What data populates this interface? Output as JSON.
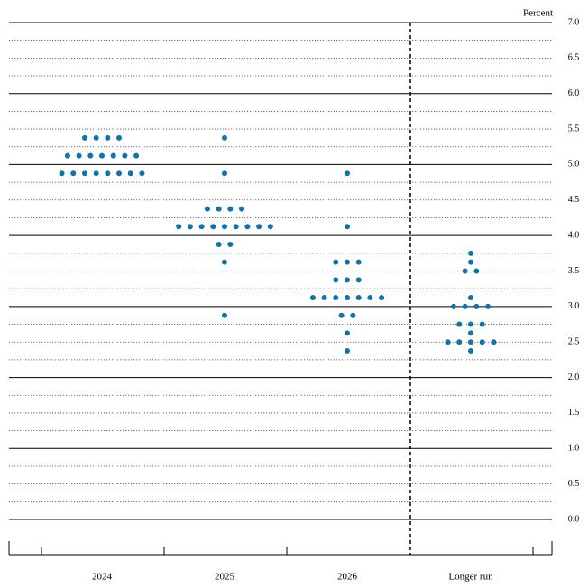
{
  "chart_data": {
    "type": "dot",
    "y_label": "Percent",
    "categories": [
      "2024",
      "2025",
      "2026",
      "Longer run"
    ],
    "values": [
      [
        5.375,
        5.375,
        5.375,
        5.375,
        5.125,
        5.125,
        5.125,
        5.125,
        5.125,
        5.125,
        5.125,
        4.875,
        4.875,
        4.875,
        4.875,
        4.875,
        4.875,
        4.875,
        4.875
      ],
      [
        5.375,
        4.875,
        4.375,
        4.375,
        4.375,
        4.375,
        4.125,
        4.125,
        4.125,
        4.125,
        4.125,
        4.125,
        4.125,
        4.125,
        4.125,
        3.875,
        3.875,
        3.625,
        2.875
      ],
      [
        4.875,
        4.125,
        3.625,
        3.625,
        3.625,
        3.375,
        3.375,
        3.375,
        3.125,
        3.125,
        3.125,
        3.125,
        3.125,
        3.125,
        3.125,
        2.875,
        2.875,
        2.625,
        2.375
      ],
      [
        3.75,
        3.625,
        3.5,
        3.5,
        3.125,
        3.0,
        3.0,
        3.0,
        3.0,
        2.75,
        2.75,
        2.75,
        2.625,
        2.5,
        2.5,
        2.5,
        2.5,
        2.5,
        2.375
      ]
    ],
    "color": "#1372a6",
    "ylim": [
      0,
      7
    ],
    "yticks": [
      {
        "value": 0,
        "label": "0.0"
      },
      {
        "value": 0.5,
        "label": "0.5"
      },
      {
        "value": 1,
        "label": "1.0"
      },
      {
        "value": 1.5,
        "label": "1.5"
      },
      {
        "value": 2,
        "label": "2.0"
      },
      {
        "value": 2.5,
        "label": "2.5"
      },
      {
        "value": 3,
        "label": "3.0"
      },
      {
        "value": 3.5,
        "label": "3.5"
      },
      {
        "value": 4,
        "label": "4.0"
      },
      {
        "value": 4.5,
        "label": "4.5"
      },
      {
        "value": 5,
        "label": "5.0"
      },
      {
        "value": 5.5,
        "label": "5.5"
      },
      {
        "value": 6,
        "label": "6.0"
      },
      {
        "value": 6.5,
        "label": "6.5"
      },
      {
        "value": 7,
        "label": "7.0"
      }
    ],
    "minor_yticks": [
      0.25,
      0.75,
      1.25,
      1.75,
      2.25,
      2.75,
      3.25,
      3.75,
      4.25,
      4.75,
      5.25,
      5.75,
      6.25,
      6.75
    ],
    "grid": true
  }
}
